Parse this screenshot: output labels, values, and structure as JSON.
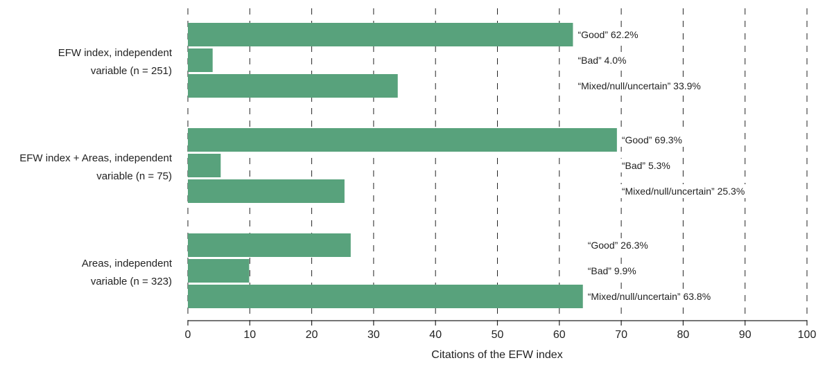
{
  "chart_data": {
    "type": "bar",
    "orientation": "horizontal",
    "xlabel": "Citations of the EFW index",
    "xlim": [
      0,
      100
    ],
    "xticks": [
      "0",
      "10",
      "20",
      "30",
      "40",
      "50",
      "60",
      "70",
      "80",
      "90",
      "100"
    ],
    "grid": true,
    "bar_color": "#58a27c",
    "groups": [
      {
        "label_lines": [
          "EFW index, independent",
          "variable (n = 251)"
        ],
        "bars": [
          {
            "category": "Good",
            "value": 62.2,
            "label": "“Good” 62.2%"
          },
          {
            "category": "Bad",
            "value": 4.0,
            "label": "“Bad” 4.0%"
          },
          {
            "category": "Mixed/null/uncertain",
            "value": 33.9,
            "label": "“Mixed/null/uncertain” 33.9%"
          }
        ]
      },
      {
        "label_lines": [
          "EFW index + Areas, independent",
          "variable (n = 75)"
        ],
        "bars": [
          {
            "category": "Good",
            "value": 69.3,
            "label": "“Good” 69.3%"
          },
          {
            "category": "Bad",
            "value": 5.3,
            "label": "“Bad” 5.3%"
          },
          {
            "category": "Mixed/null/uncertain",
            "value": 25.3,
            "label": "“Mixed/null/uncertain” 25.3%"
          }
        ]
      },
      {
        "label_lines": [
          "Areas, independent",
          "variable (n = 323)"
        ],
        "bars": [
          {
            "category": "Good",
            "value": 26.3,
            "label": "“Good” 26.3%"
          },
          {
            "category": "Bad",
            "value": 9.9,
            "label": "“Bad” 9.9%"
          },
          {
            "category": "Mixed/null/uncertain",
            "value": 63.8,
            "label": "“Mixed/null/uncertain” 63.8%"
          }
        ]
      }
    ]
  }
}
